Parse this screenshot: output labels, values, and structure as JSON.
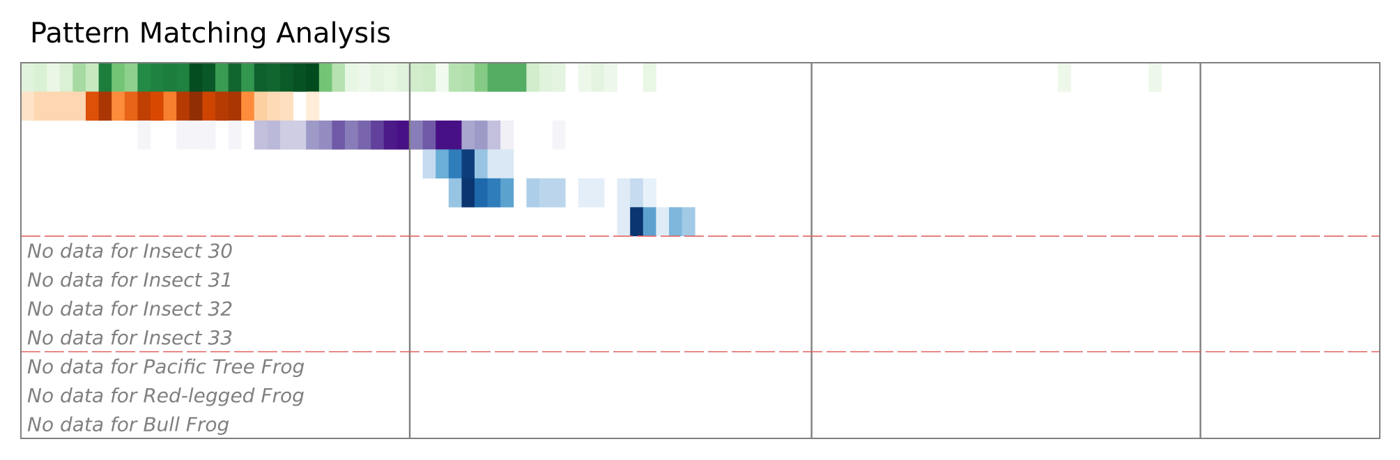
{
  "chart_data": {
    "type": "heatmap",
    "title": "Pattern Matching Analysis",
    "x_columns": 105,
    "period_boundaries": [
      30,
      61,
      91
    ],
    "group_boundaries": [
      6,
      10
    ],
    "rows": [
      {
        "colormap": "Greens",
        "cells": [
          [
            0,
            0.12
          ],
          [
            1,
            0.15
          ],
          [
            2,
            0.07
          ],
          [
            3,
            0.15
          ],
          [
            4,
            0.35
          ],
          [
            5,
            0.25
          ],
          [
            6,
            0.8
          ],
          [
            7,
            0.5
          ],
          [
            8,
            0.42
          ],
          [
            9,
            0.75
          ],
          [
            10,
            0.78
          ],
          [
            11,
            0.8
          ],
          [
            12,
            0.78
          ],
          [
            13,
            0.97
          ],
          [
            14,
            0.93
          ],
          [
            15,
            0.68
          ],
          [
            16,
            0.88
          ],
          [
            17,
            0.7
          ],
          [
            18,
            0.9
          ],
          [
            19,
            0.88
          ],
          [
            20,
            0.92
          ],
          [
            21,
            0.95
          ],
          [
            22,
            0.98
          ],
          [
            23,
            0.5
          ],
          [
            24,
            0.3
          ],
          [
            25,
            0.08
          ],
          [
            26,
            0.05
          ],
          [
            27,
            0.1
          ],
          [
            28,
            0.08
          ],
          [
            29,
            0.12
          ],
          [
            30,
            0.2
          ],
          [
            31,
            0.22
          ],
          [
            32,
            0.03
          ],
          [
            33,
            0.3
          ],
          [
            34,
            0.32
          ],
          [
            35,
            0.45
          ],
          [
            36,
            0.6
          ],
          [
            37,
            0.6
          ],
          [
            38,
            0.6
          ],
          [
            39,
            0.2
          ],
          [
            40,
            0.12
          ],
          [
            41,
            0.1
          ],
          [
            43,
            0.05
          ],
          [
            44,
            0.1
          ],
          [
            45,
            0.05
          ],
          [
            48,
            0.08
          ],
          [
            80,
            0.05
          ],
          [
            87,
            0.05
          ]
        ]
      },
      {
        "colormap": "Oranges",
        "cells": [
          [
            0,
            0.12
          ],
          [
            1,
            0.2
          ],
          [
            2,
            0.2
          ],
          [
            3,
            0.2
          ],
          [
            4,
            0.2
          ],
          [
            5,
            0.72
          ],
          [
            6,
            0.88
          ],
          [
            7,
            0.5
          ],
          [
            8,
            0.65
          ],
          [
            9,
            0.82
          ],
          [
            10,
            0.75
          ],
          [
            11,
            0.55
          ],
          [
            12,
            0.85
          ],
          [
            13,
            0.95
          ],
          [
            14,
            0.78
          ],
          [
            15,
            0.85
          ],
          [
            16,
            0.88
          ],
          [
            17,
            0.5
          ],
          [
            18,
            0.25
          ],
          [
            19,
            0.18
          ],
          [
            20,
            0.15
          ],
          [
            22,
            0.06
          ]
        ]
      },
      {
        "colormap": "Purples",
        "cells": [
          [
            9,
            0.05
          ],
          [
            12,
            0.05
          ],
          [
            13,
            0.05
          ],
          [
            14,
            0.05
          ],
          [
            16,
            0.05
          ],
          [
            18,
            0.35
          ],
          [
            19,
            0.38
          ],
          [
            20,
            0.3
          ],
          [
            21,
            0.3
          ],
          [
            22,
            0.5
          ],
          [
            23,
            0.55
          ],
          [
            24,
            0.72
          ],
          [
            25,
            0.6
          ],
          [
            26,
            0.68
          ],
          [
            27,
            0.8
          ],
          [
            28,
            0.92
          ],
          [
            29,
            0.95
          ],
          [
            30,
            0.6
          ],
          [
            31,
            0.72
          ],
          [
            32,
            0.95
          ],
          [
            33,
            0.95
          ],
          [
            34,
            0.45
          ],
          [
            35,
            0.5
          ],
          [
            36,
            0.35
          ],
          [
            37,
            0.08
          ],
          [
            41,
            0.05
          ]
        ]
      },
      {
        "colormap": "Blues",
        "cells": [
          [
            31,
            0.25
          ],
          [
            32,
            0.5
          ],
          [
            33,
            0.7
          ],
          [
            34,
            0.95
          ],
          [
            35,
            0.38
          ],
          [
            36,
            0.15
          ],
          [
            37,
            0.15
          ]
        ]
      },
      {
        "colormap": "Blues",
        "cells": [
          [
            33,
            0.38
          ],
          [
            34,
            0.98
          ],
          [
            35,
            0.78
          ],
          [
            36,
            0.7
          ],
          [
            37,
            0.55
          ],
          [
            39,
            0.32
          ],
          [
            40,
            0.28
          ],
          [
            41,
            0.28
          ],
          [
            43,
            0.1
          ],
          [
            44,
            0.1
          ],
          [
            46,
            0.12
          ],
          [
            47,
            0.25
          ],
          [
            48,
            0.08
          ]
        ]
      },
      {
        "colormap": "Blues",
        "cells": [
          [
            46,
            0.12
          ],
          [
            47,
            0.98
          ],
          [
            48,
            0.55
          ],
          [
            49,
            0.12
          ],
          [
            50,
            0.45
          ],
          [
            51,
            0.35
          ]
        ]
      }
    ],
    "no_data_labels": [
      "No data for Insect 30",
      "No data for Insect 31",
      "No data for Insect 32",
      "No data for Insect 33",
      "No data for Pacific Tree Frog",
      "No data for Red-legged Frog",
      "No data for Bull Frog"
    ],
    "colors": {
      "frame": "#7f7f7f",
      "group_separator": "#e06060",
      "no_data_text": "#808080"
    }
  }
}
